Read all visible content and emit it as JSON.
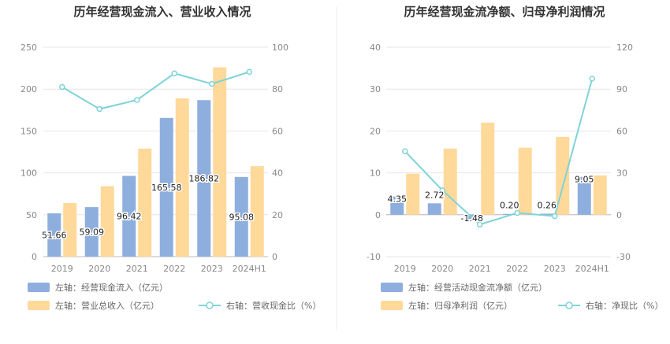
{
  "chart_data": [
    {
      "type": "bar",
      "title": "历年经营现金流入、营业收入情况",
      "categories": [
        "2019",
        "2020",
        "2021",
        "2022",
        "2023",
        "2024H1"
      ],
      "left_ylim": [
        0,
        250
      ],
      "left_ticks": [
        0,
        50,
        100,
        150,
        200,
        250
      ],
      "right_ylim": [
        0,
        100
      ],
      "right_ticks": [
        0,
        20,
        40,
        60,
        80,
        100
      ],
      "series": [
        {
          "name": "左轴：经营现金流入（亿元）",
          "kind": "bar",
          "axis": "left",
          "color": "#8eaede",
          "values": [
            51.66,
            59.09,
            96.42,
            165.58,
            186.82,
            95.08
          ],
          "labels": [
            "51.66",
            "59.09",
            "96.42",
            "165.58",
            "186.82",
            "95.08"
          ]
        },
        {
          "name": "左轴：营业总收入（亿元）",
          "kind": "bar",
          "axis": "left",
          "color": "#ffd99a",
          "values": [
            64,
            84,
            129,
            189,
            226,
            108
          ]
        },
        {
          "name": "右轴：营收现金比（%）",
          "kind": "line",
          "axis": "right",
          "color": "#7fd3d8",
          "values": [
            81,
            70.5,
            74.8,
            87.5,
            82.5,
            88.2
          ]
        }
      ]
    },
    {
      "type": "bar",
      "title": "历年经营现金流净额、归母净利润情况",
      "categories": [
        "2019",
        "2020",
        "2021",
        "2022",
        "2023",
        "2024H1"
      ],
      "left_ylim": [
        -10,
        40
      ],
      "left_ticks": [
        -10,
        0,
        10,
        20,
        30,
        40
      ],
      "right_ylim": [
        -30,
        120
      ],
      "right_ticks": [
        -30,
        0,
        30,
        60,
        90,
        120
      ],
      "series": [
        {
          "name": "左轴：经营活动现金流净额（亿元）",
          "kind": "bar",
          "axis": "left",
          "color": "#8eaede",
          "values": [
            4.35,
            2.72,
            -1.48,
            0.2,
            0.26,
            9.05
          ],
          "labels": [
            "4.35",
            "2.72",
            "-1.48",
            "0.20",
            "0.26",
            "9.05"
          ]
        },
        {
          "name": "左轴：归母净利润（亿元）",
          "kind": "bar",
          "axis": "left",
          "color": "#ffd99a",
          "values": [
            9.8,
            15.8,
            22,
            16,
            18.6,
            9.4
          ]
        },
        {
          "name": "右轴：净现比（%）",
          "kind": "line",
          "axis": "right",
          "color": "#7fd3d8",
          "values": [
            45.5,
            17.5,
            -7.0,
            1.3,
            -1.0,
            97.5
          ]
        }
      ]
    }
  ]
}
